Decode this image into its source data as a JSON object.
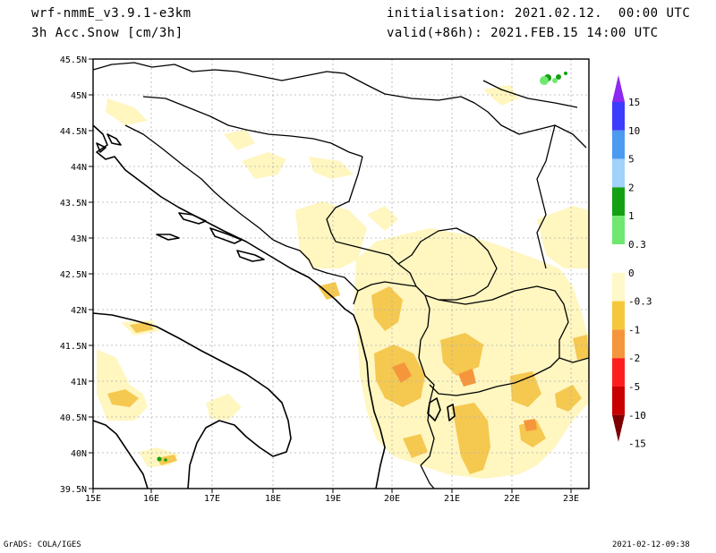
{
  "header": {
    "model": "wrf-nmmE_v3.9.1-e3km",
    "field": "3h Acc.Snow [cm/3h]",
    "init": "initialisation: 2021.02.12.  00:00 UTC",
    "valid": "valid(+86h): 2021.FEB.15 14:00 UTC"
  },
  "footer": {
    "left": "GrADS: COLA/IGES",
    "right": "2021-02-12-09:38"
  },
  "map": {
    "lon_labels": [
      "15E",
      "16E",
      "17E",
      "18E",
      "19E",
      "20E",
      "21E",
      "22E",
      "23E"
    ],
    "lat_labels": [
      "45.5N",
      "45N",
      "44.5N",
      "44N",
      "43.5N",
      "43N",
      "42.5N",
      "42N",
      "41.5N",
      "41N",
      "40.5N",
      "40N",
      "39.5N"
    ]
  },
  "colorbar": {
    "labels": [
      "15",
      "10",
      "5",
      "2",
      "1",
      "0.3",
      "0",
      "-0.3",
      "-1",
      "-2",
      "-5",
      "-10",
      "-15"
    ],
    "colors": [
      "#8c28f0",
      "#3c3cff",
      "#4b9bf0",
      "#a0d2fa",
      "#13a013",
      "#70e870",
      "#ffffff",
      "#fff8c8",
      "#f5c83c",
      "#f5963c",
      "#ff1e1e",
      "#c80000",
      "#7d0000"
    ]
  },
  "palette": {
    "snow_light": "#fff6c0",
    "snow_mid": "#f5c850",
    "snow_heavy": "#f5963c",
    "snow_green": "#13a013"
  }
}
